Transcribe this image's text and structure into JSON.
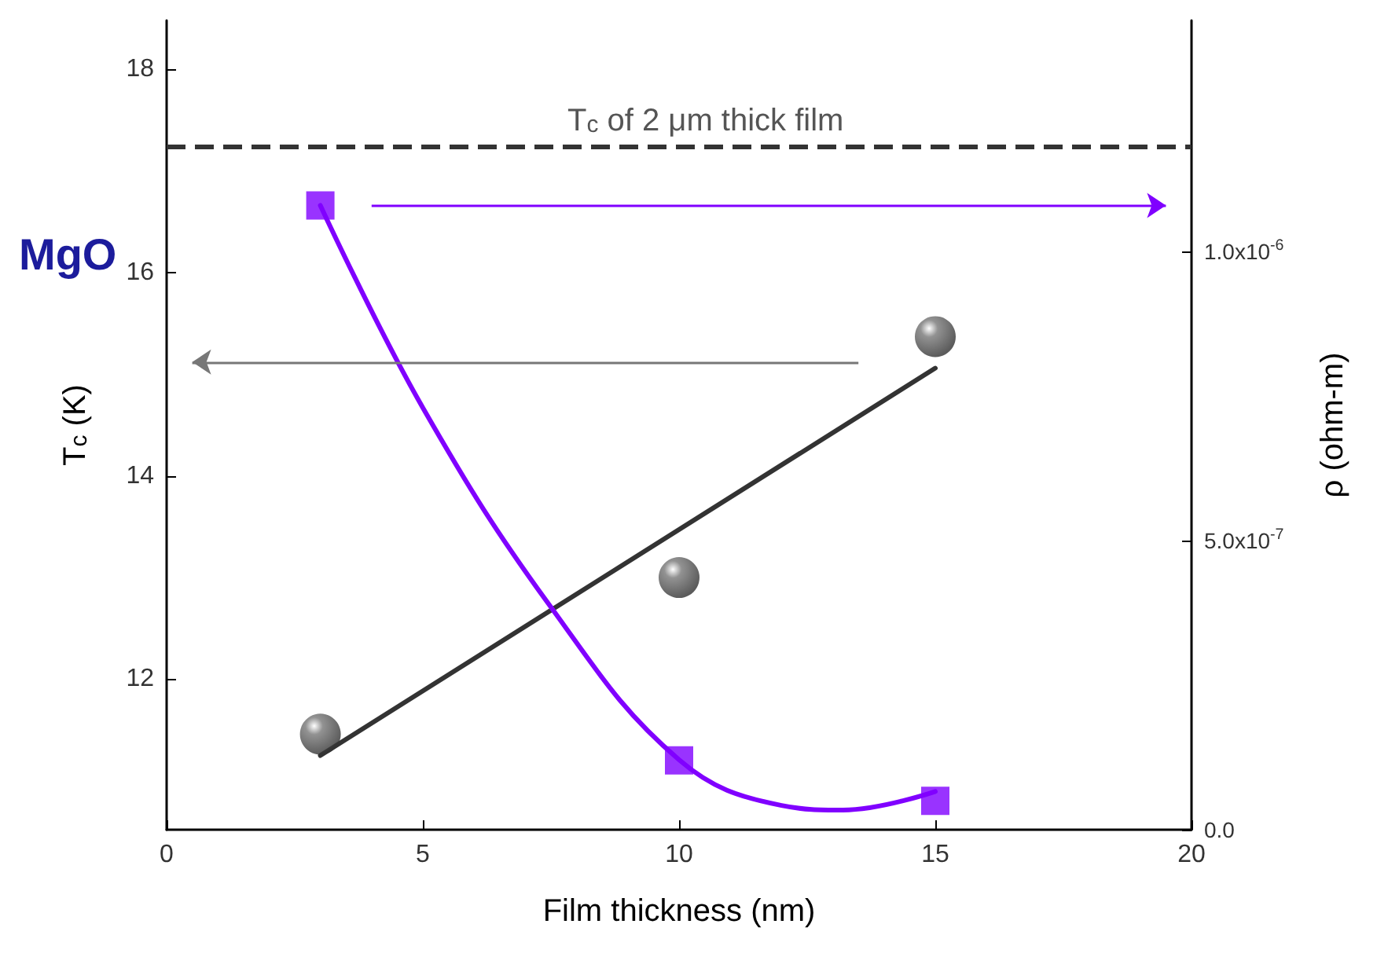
{
  "chart_data": {
    "type": "scatter",
    "xlabel": "Film thickness (nm)",
    "ylabel": "T$_{c}$ (K)",
    "y2label": "ρ (ohm-m)",
    "xlim": [
      0,
      20
    ],
    "xticks": [
      0,
      5,
      10,
      15,
      20
    ],
    "ylim": [
      10.52,
      18.48
    ],
    "yticks": [
      12,
      14,
      16,
      18
    ],
    "y2lim": [
      0,
      1.4e-06
    ],
    "y2ticks": [
      {
        "value": 0,
        "label": "0.0"
      },
      {
        "value": 5e-07,
        "label": "5.0x10$^{-7}$"
      },
      {
        "value": 1e-06,
        "label": "1.0x10$^{-6}$"
      }
    ],
    "series": [
      {
        "type": "scatter",
        "color": "#333333",
        "marker": "circle",
        "x": [
          3,
          10,
          15
        ],
        "values": [
          11.46,
          13.0,
          15.37
        ]
      },
      {
        "type": "line",
        "color": "#333333",
        "marker": "none",
        "x": [
          3,
          15
        ],
        "values": [
          11.25,
          15.06
        ]
      },
      {
        "type": "scatter",
        "color": "#8000ff",
        "marker": "square",
        "axis": "y2",
        "x": [
          3,
          10,
          15
        ],
        "values": [
          1.08e-06,
          1.2e-07,
          5e-08
        ]
      },
      {
        "type": "line",
        "color": "#8000ff",
        "marker": "none",
        "axis": "y2",
        "x": [
          3,
          5,
          7.5,
          10,
          12,
          13.2,
          15
        ],
        "values": [
          1.08e-06,
          7.3e-07,
          3.85e-07,
          1.21e-07,
          4.2e-08,
          3.4e-08,
          6.6e-08
        ]
      }
    ],
    "ref_lines": [
      {
        "axis": "y",
        "value": 17.24,
        "label": "T$_{c}$ of 2 μm thick film",
        "color": "#333333",
        "line_style": "dashed"
      }
    ],
    "annotations": [
      "MgO"
    ],
    "grid": false
  }
}
